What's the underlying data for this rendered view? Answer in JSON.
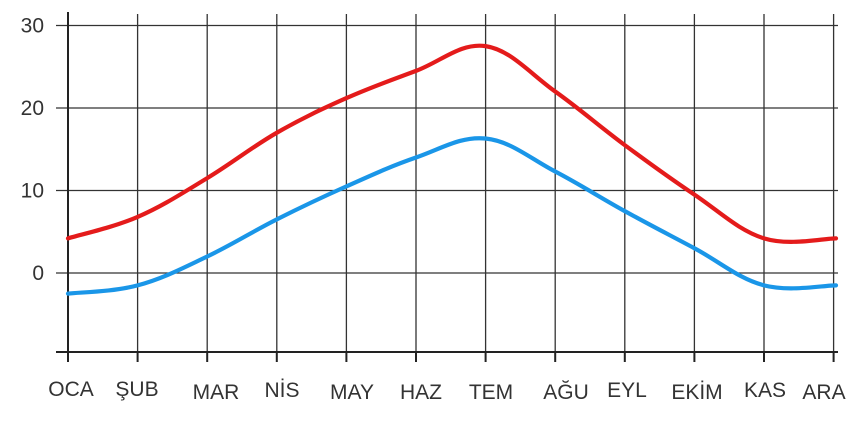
{
  "chart_data": {
    "type": "line",
    "title": "",
    "xlabel": "",
    "ylabel": "",
    "categories": [
      "OCA",
      "ŞUB",
      "MAR",
      "NİS",
      "MAY",
      "HAZ",
      "TEM",
      "AĞU",
      "EYL",
      "EKİM",
      "KAS",
      "ARA"
    ],
    "y_ticks": [
      0,
      10,
      20,
      30
    ],
    "ylim": [
      -10,
      30
    ],
    "grid": true,
    "legend": "none",
    "series": [
      {
        "color": "#e41b1b",
        "values": [
          4.2,
          6.8,
          11.5,
          17.0,
          21.2,
          24.5,
          27.5,
          22.0,
          15.5,
          9.5,
          4.2,
          4.2
        ]
      },
      {
        "color": "#1a96e8",
        "values": [
          -2.5,
          -1.5,
          2.0,
          6.5,
          10.5,
          14.0,
          16.3,
          12.3,
          7.5,
          3.0,
          -1.5,
          -1.5
        ]
      }
    ]
  }
}
